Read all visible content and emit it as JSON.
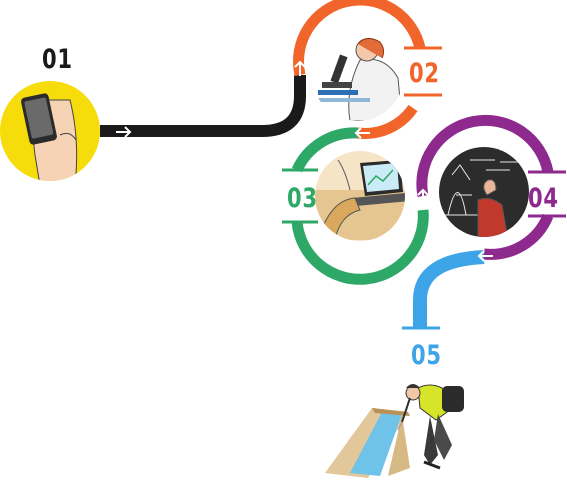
{
  "steps": [
    {
      "number": "01",
      "color": "#1a1a1a",
      "illustration": "hand-holding-smartphone",
      "accent": "#f5dc0a"
    },
    {
      "number": "02",
      "color": "#f2652a",
      "illustration": "scientist-with-microscope"
    },
    {
      "number": "03",
      "color": "#2ea866",
      "illustration": "person-using-laptop-with-charts"
    },
    {
      "number": "04",
      "color": "#8e2a8e",
      "illustration": "presenter-at-blackboard-with-graphs"
    },
    {
      "number": "05",
      "color": "#3ea4e8",
      "illustration": "field-worker-inspecting-water-channel"
    }
  ],
  "icons": {
    "arrow": "arrow-right-icon"
  }
}
